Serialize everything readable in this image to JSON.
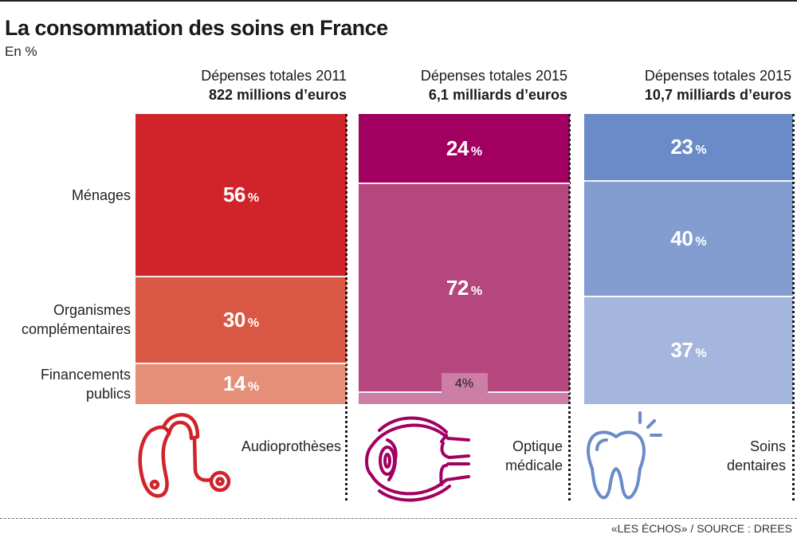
{
  "header": {
    "title": "La consommation des soins en France",
    "subtitle": "En %"
  },
  "footer": {
    "source": "«LES ÉCHOS» / SOURCE : DREES"
  },
  "chart_data": {
    "type": "bar",
    "stacked": true,
    "percent_stacked": true,
    "title": "La consommation des soins en France",
    "unit": "%",
    "row_labels": [
      "Ménages",
      "Organismes complémentaires",
      "Financements publics"
    ],
    "columns": [
      {
        "category": "Audioprothèses",
        "header_line1": "Dépenses totales 2011",
        "header_line2": "822 millions d’euros",
        "icon": "hearing-aid-icon",
        "colors": [
          "#d0232a",
          "#d95843",
          "#e58f78"
        ],
        "series": [
          {
            "name": "Ménages",
            "value": 56,
            "label": "56"
          },
          {
            "name": "Organismes complémentaires",
            "value": 30,
            "label": "30"
          },
          {
            "name": "Financements publics",
            "value": 14,
            "label": "14"
          }
        ]
      },
      {
        "category": "Optique médicale",
        "header_line1": "Dépenses totales 2015",
        "header_line2": "6,1 milliards d’euros",
        "icon": "eye-icon",
        "colors": [
          "#a20061",
          "#b5467e",
          "#cc7fa5"
        ],
        "series": [
          {
            "name": "Ménages",
            "value": 24,
            "label": "24"
          },
          {
            "name": "Organismes complémentaires",
            "value": 72,
            "label": "72"
          },
          {
            "name": "Financements publics",
            "value": 4,
            "label": "4"
          }
        ]
      },
      {
        "category": "Soins dentaires",
        "header_line1": "Dépenses totales 2015",
        "header_line2": "10,7 milliards d’euros",
        "icon": "tooth-icon",
        "colors": [
          "#6a8bc7",
          "#839dd0",
          "#a5b6de"
        ],
        "series": [
          {
            "name": "Ménages",
            "value": 23,
            "label": "23"
          },
          {
            "name": "Organismes complémentaires",
            "value": 40,
            "label": "40"
          },
          {
            "name": "Financements publics",
            "value": 37,
            "label": "37"
          }
        ]
      }
    ],
    "category_labels": {
      "col0": [
        "Audioprothèses"
      ],
      "col1": [
        "Optique",
        "médicale"
      ],
      "col2": [
        "Soins",
        "dentaires"
      ]
    },
    "pct_symbol": "%"
  }
}
